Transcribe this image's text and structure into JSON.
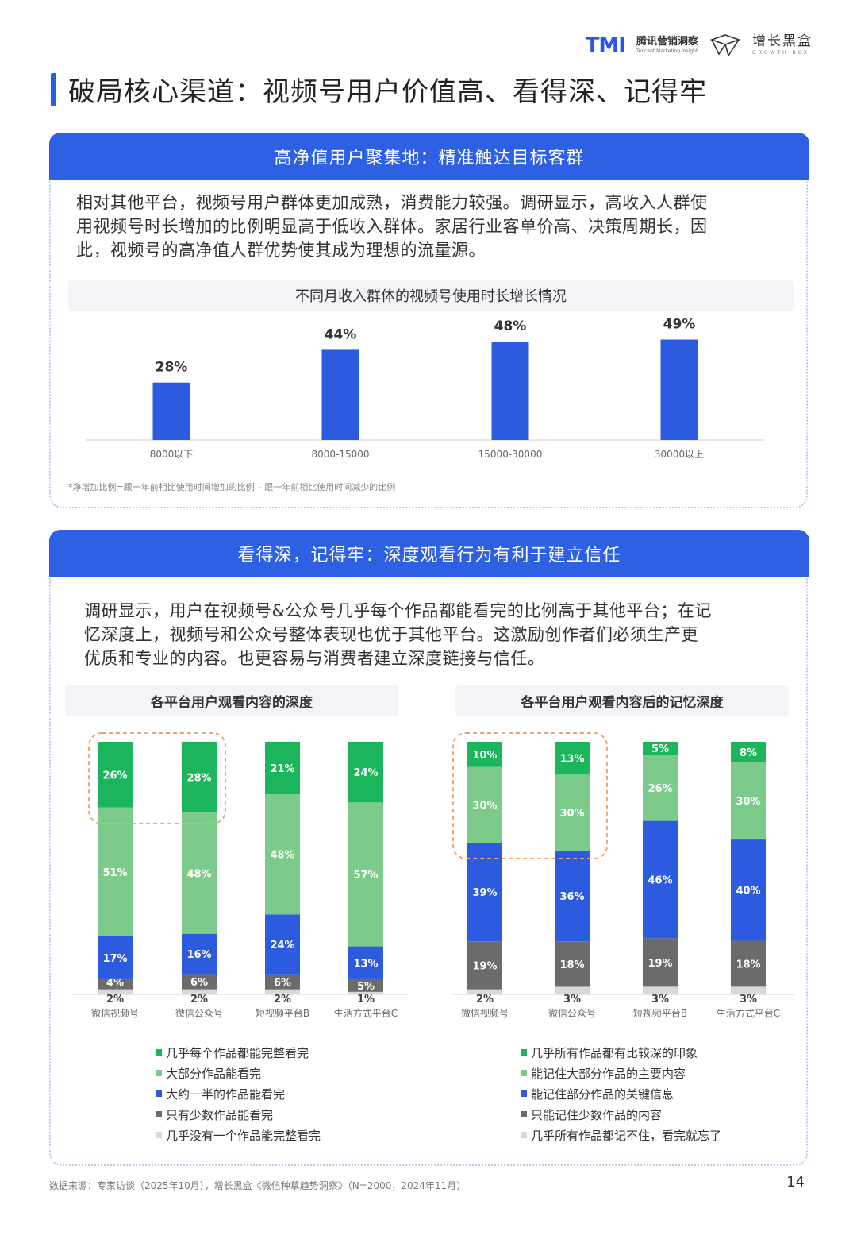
{
  "header": {
    "tmi_logo": "TMI",
    "tmi_cn": "腾讯营销洞察",
    "tmi_en": "Tencent Marketing Insight",
    "gb_cn": "增长黑盒",
    "gb_en": "GROWTH BOX"
  },
  "page_title": "破局核心渠道：视频号用户价值高、看得深、记得牢",
  "section1": {
    "heading": "高净值用户聚集地：精准触达目标客群",
    "paragraph_lines": [
      "相对其他平台，视频号用户群体更加成熟，消费能力较强。调研显示，高收入人群使",
      "用视频号时长增加的比例明显高于低收入群体。家居行业客单价高、决策周期长，因",
      "此，视频号的高净值人群优势使其成为理想的流量源。"
    ],
    "chart_title": "不同月收入群体的视频号使用时长增长情况",
    "footnote": "*净增加比例=跟一年前相比使用时间增加的比例 – 跟一年前相比使用时间减少的比例"
  },
  "section2": {
    "heading": "看得深，记得牢：深度观看行为有利于建立信任",
    "paragraph_lines": [
      "调研显示，用户在视频号&公众号几乎每个作品都能看完的比例高于其他平台；在记",
      "忆深度上，视频号和公众号整体表现也优于其他平台。这激励创作者们必须生产更",
      "优质和专业的内容。也更容易与消费者建立深度链接与信任。"
    ],
    "left_chart_title": "各平台用户观看内容的深度",
    "right_chart_title": "各平台用户观看内容后的记忆深度"
  },
  "source": "数据来源：专家访谈（2025年10月），增长黑盒《微信种草趋势洞察》（N=2000，2024年11月）",
  "page_number": "14",
  "colors": {
    "blue": "#2e60e3",
    "dark_green": "#1bb65c",
    "light_green": "#7ccb8a",
    "bar_blue": "#2d5be0",
    "gray": "#6b6b6b",
    "light_gray": "#d9d9d9",
    "highlight": "#f0a870"
  },
  "chart_data": [
    {
      "type": "bar",
      "title": "不同月收入群体的视频号使用时长增长情况",
      "categories": [
        "8000以下",
        "8000-15000",
        "15000-30000",
        "30000以上"
      ],
      "values": [
        28,
        44,
        48,
        49
      ],
      "labels": [
        "28%",
        "44%",
        "48%",
        "49%"
      ],
      "ylim": [
        0,
        55
      ],
      "grid": false
    },
    {
      "type": "bar",
      "stacked": true,
      "title": "各平台用户观看内容的深度",
      "categories": [
        "微信视频号",
        "微信公众号",
        "短视频平台B",
        "生活方式平台C"
      ],
      "series": [
        {
          "name": "几乎没有一个作品能完整看完",
          "values": [
            2,
            2,
            2,
            1
          ]
        },
        {
          "name": "只有少数作品能看完",
          "values": [
            4,
            6,
            6,
            5
          ]
        },
        {
          "name": "大约一半的作品能看完",
          "values": [
            17,
            16,
            24,
            13
          ]
        },
        {
          "name": "大部分作品能看完",
          "values": [
            51,
            48,
            48,
            57
          ]
        },
        {
          "name": "几乎每个作品都能完整看完",
          "values": [
            26,
            28,
            21,
            24
          ]
        }
      ],
      "highlight": [
        "微信视频号",
        "微信公众号"
      ],
      "legend_order": [
        "几乎每个作品都能完整看完",
        "大部分作品能看完",
        "大约一半的作品能看完",
        "只有少数作品能看完",
        "几乎没有一个作品能完整看完"
      ]
    },
    {
      "type": "bar",
      "stacked": true,
      "title": "各平台用户观看内容后的记忆深度",
      "categories": [
        "微信视频号",
        "微信公众号",
        "短视频平台B",
        "生活方式平台C"
      ],
      "series": [
        {
          "name": "几乎所有作品都记不住，看完就忘了",
          "values": [
            2,
            3,
            3,
            3
          ]
        },
        {
          "name": "只能记住少数作品的内容",
          "values": [
            19,
            18,
            19,
            18
          ]
        },
        {
          "name": "能记住部分作品的关键信息",
          "values": [
            39,
            36,
            46,
            40
          ]
        },
        {
          "name": "能记住大部分作品的主要内容",
          "values": [
            30,
            30,
            26,
            30
          ]
        },
        {
          "name": "几乎所有作品都有比较深的印象",
          "values": [
            10,
            13,
            5,
            8
          ]
        }
      ],
      "highlight": [
        "微信视频号",
        "微信公众号"
      ],
      "legend_order": [
        "几乎所有作品都有比较深的印象",
        "能记住大部分作品的主要内容",
        "能记住部分作品的关键信息",
        "只能记住少数作品的内容",
        "几乎所有作品都记不住，看完就忘了"
      ]
    }
  ]
}
